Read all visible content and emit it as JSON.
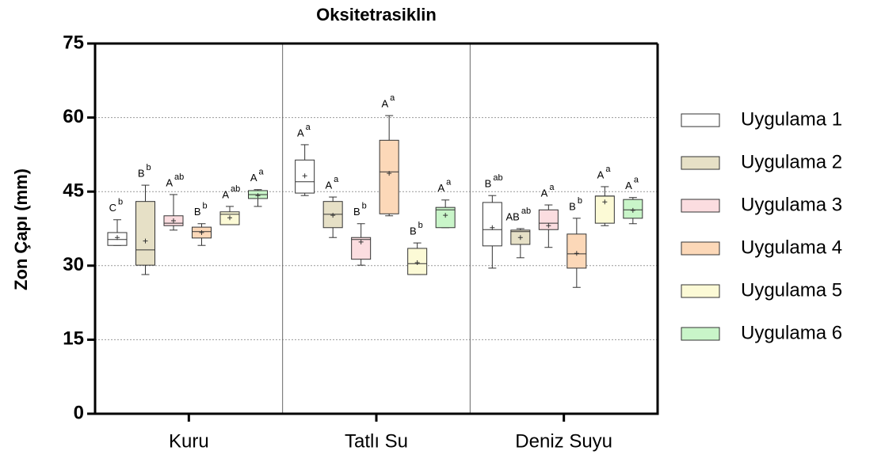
{
  "chart_data": {
    "type": "box",
    "title": "Oksitetrasiklin",
    "y_label": "Zon Çapı (mm)",
    "categories": [
      "Kuru",
      "Tatlı Su",
      "Deniz Suyu"
    ],
    "ylim": [
      0,
      75
    ],
    "yticks": [
      0,
      15,
      30,
      45,
      60,
      75
    ],
    "grid": true,
    "legend": "right",
    "series": [
      {
        "name": "Uygulama 1",
        "color": "#ffffff",
        "min": [
          34.1,
          44.2,
          29.5
        ],
        "q1": [
          34.1,
          44.7,
          34
        ],
        "median": [
          35.3,
          47,
          37.3
        ],
        "q3": [
          36.7,
          51.4,
          42.8
        ],
        "max": [
          39.3,
          54.5,
          44.2
        ],
        "mean": [
          35.7,
          48.2,
          37.7
        ],
        "letters": [
          "C",
          "A",
          "B"
        ],
        "sup": [
          "b",
          "a",
          "ab"
        ]
      },
      {
        "name": "Uygulama 2",
        "color": "#e6e0c6",
        "min": [
          28.2,
          35.7,
          31.6
        ],
        "q1": [
          30.1,
          37.7,
          34.3
        ],
        "median": [
          33.2,
          40.4,
          36.9
        ],
        "q3": [
          43,
          43,
          37.2
        ],
        "max": [
          46.3,
          43.9,
          37.5
        ],
        "mean": [
          35,
          40.2,
          35.7
        ],
        "letters": [
          "B",
          "A",
          "AB"
        ],
        "sup": [
          "b",
          "a",
          "ab"
        ]
      },
      {
        "name": "Uygulama 3",
        "color": "#fbdde0",
        "min": [
          37.2,
          30.1,
          33.7
        ],
        "q1": [
          38.1,
          31.3,
          37.3
        ],
        "median": [
          38.6,
          35.3,
          38.6
        ],
        "q3": [
          40.1,
          35.7,
          41.3
        ],
        "max": [
          44.4,
          38.5,
          42.3
        ],
        "mean": [
          39.1,
          34.8,
          38.1
        ],
        "letters": [
          "A",
          "B",
          "A"
        ],
        "sup": [
          "ab",
          "b",
          "a"
        ]
      },
      {
        "name": "Uygulama 4",
        "color": "#fcd8b8",
        "min": [
          34.1,
          40.1,
          25.6
        ],
        "q1": [
          35.6,
          40.5,
          29.5
        ],
        "median": [
          36.9,
          49,
          32.4
        ],
        "q3": [
          37.8,
          55.4,
          36.4
        ],
        "max": [
          38.5,
          60.4,
          39.6
        ],
        "mean": [
          36.7,
          48.7,
          32.5
        ],
        "letters": [
          "B",
          "A",
          "B"
        ],
        "sup": [
          "b",
          "a",
          "b"
        ]
      },
      {
        "name": "Uygulama 5",
        "color": "#fcfad6",
        "min": [
          38.3,
          28.2,
          38.1
        ],
        "q1": [
          38.3,
          28.2,
          38.6
        ],
        "median": [
          40.4,
          30.4,
          44.1
        ],
        "q3": [
          40.9,
          33.5,
          44.1
        ],
        "max": [
          42,
          34.6,
          46
        ],
        "mean": [
          39.7,
          30.6,
          42.9
        ],
        "letters": [
          "A",
          "B",
          "A"
        ],
        "sup": [
          "ab",
          "b",
          "a"
        ]
      },
      {
        "name": "Uygulama 6",
        "color": "#c9f5c9",
        "min": [
          42,
          37.7,
          38.5
        ],
        "q1": [
          43.6,
          37.7,
          39.6
        ],
        "median": [
          44.4,
          41.3,
          41.3
        ],
        "q3": [
          45.2,
          41.8,
          43.4
        ],
        "max": [
          45.4,
          43.3,
          43.8
        ],
        "mean": [
          44.2,
          40.2,
          41.2
        ],
        "letters": [
          "A",
          "A",
          "A"
        ],
        "sup": [
          "a",
          "a",
          "a"
        ]
      }
    ]
  }
}
